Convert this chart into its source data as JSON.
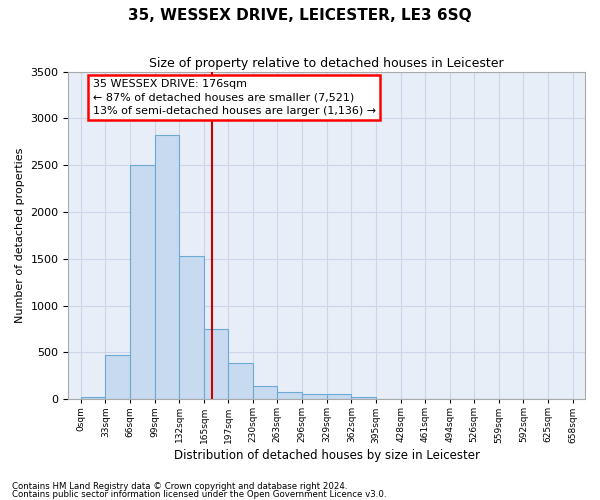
{
  "title": "35, WESSEX DRIVE, LEICESTER, LE3 6SQ",
  "subtitle": "Size of property relative to detached houses in Leicester",
  "xlabel": "Distribution of detached houses by size in Leicester",
  "ylabel": "Number of detached properties",
  "bar_color": "#c8daef",
  "bar_edge_color": "#6aaad4",
  "grid_color": "#ccd6e8",
  "background_color": "#e8eef8",
  "bin_edges": [
    0,
    33,
    66,
    99,
    132,
    165,
    197,
    230,
    263,
    296,
    329,
    362,
    395,
    428,
    461,
    494,
    526,
    559,
    592,
    625,
    658
  ],
  "bar_heights": [
    25,
    470,
    2500,
    2820,
    1530,
    750,
    390,
    140,
    80,
    60,
    55,
    25,
    0,
    0,
    0,
    0,
    0,
    0,
    0,
    0
  ],
  "property_size": 176,
  "vline_color": "#cc0000",
  "ylim_max": 3500,
  "yticks": [
    0,
    500,
    1000,
    1500,
    2000,
    2500,
    3000,
    3500
  ],
  "annotation_line1": "35 WESSEX DRIVE: 176sqm",
  "annotation_line2": "← 87% of detached houses are smaller (7,521)",
  "annotation_line3": "13% of semi-detached houses are larger (1,136) →",
  "footnote1": "Contains HM Land Registry data © Crown copyright and database right 2024.",
  "footnote2": "Contains public sector information licensed under the Open Government Licence v3.0.",
  "tick_labels": [
    "0sqm",
    "33sqm",
    "66sqm",
    "99sqm",
    "132sqm",
    "165sqm",
    "197sqm",
    "230sqm",
    "263sqm",
    "296sqm",
    "329sqm",
    "362sqm",
    "395sqm",
    "428sqm",
    "461sqm",
    "494sqm",
    "526sqm",
    "559sqm",
    "592sqm",
    "625sqm",
    "658sqm"
  ]
}
